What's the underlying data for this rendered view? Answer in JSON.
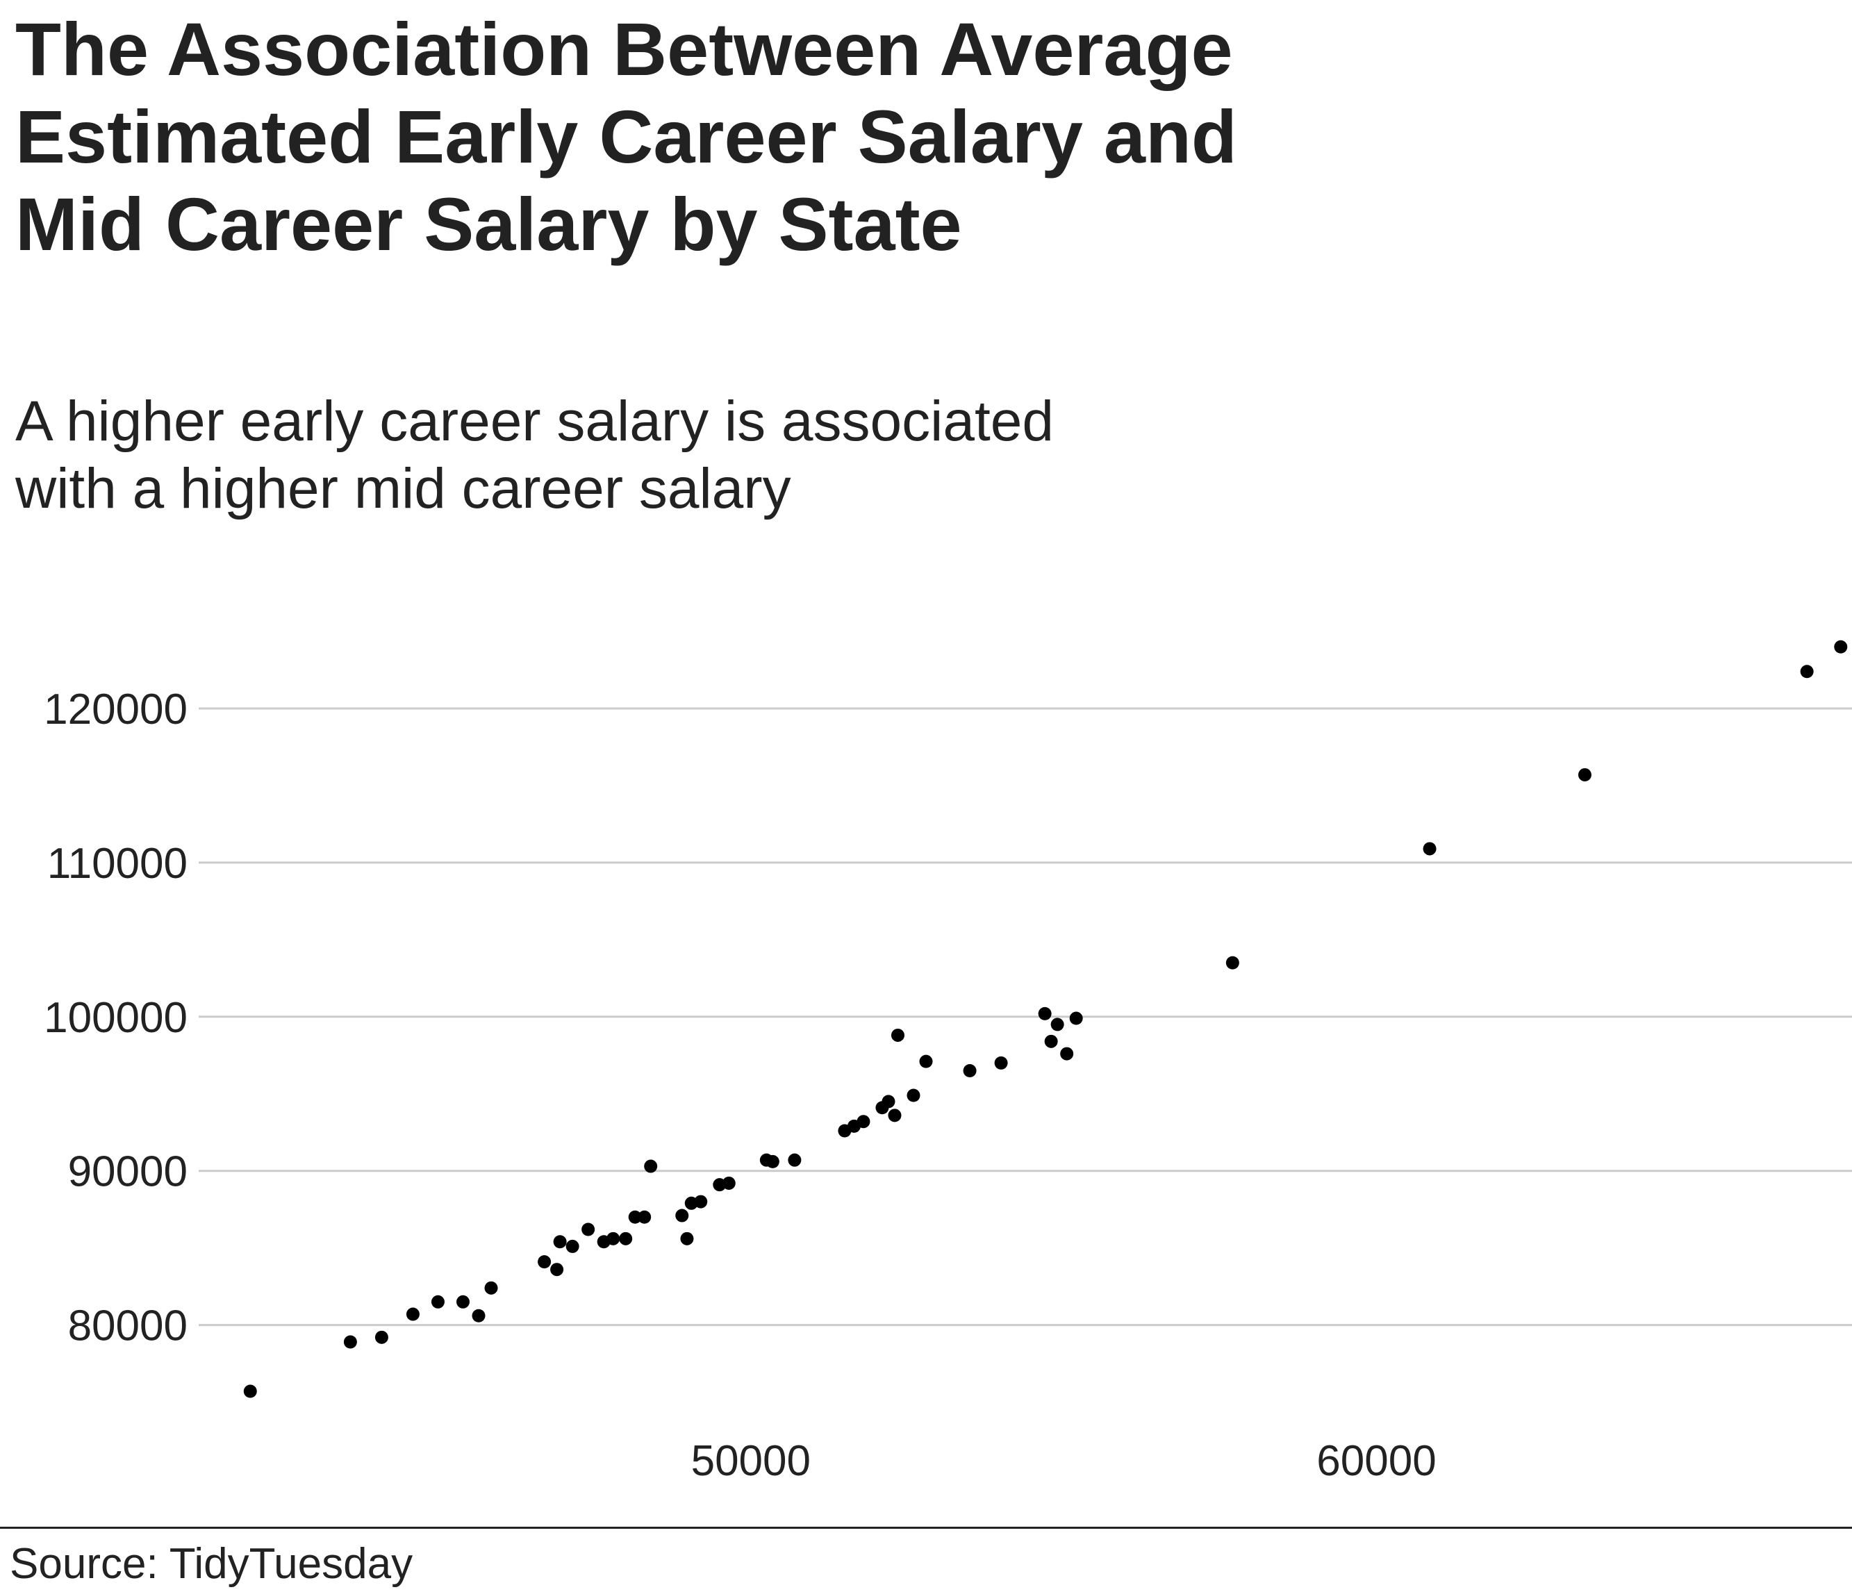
{
  "header": {
    "title": "The Association Between Average Estimated Early Career Salary and Mid Career Salary by State",
    "subtitle": "A higher early career salary is associated with a higher mid career salary"
  },
  "footer": {
    "source": "Source: TidyTuesday"
  },
  "chart_data": {
    "type": "scatter",
    "title": "The Association Between Average Estimated Early Career Salary and Mid Career Salary by State",
    "subtitle": "A higher early career salary is associated with a higher mid career salary",
    "xlabel": "",
    "ylabel": "",
    "xlim": [
      38000,
      67600
    ],
    "ylim": [
      72500,
      125500
    ],
    "x_ticks": [
      50000,
      60000
    ],
    "x_tick_labels": [
      "50000",
      "60000"
    ],
    "y_ticks": [
      80000,
      90000,
      100000,
      110000,
      120000
    ],
    "y_tick_labels": [
      "80000",
      "90000",
      "100000",
      "110000",
      "120000"
    ],
    "grid": "horizontal major only",
    "point_color": "#000000",
    "gridline_color": "#cbcbcb",
    "x": [
      42000,
      43600,
      44100,
      44600,
      45000,
      45400,
      45650,
      45850,
      46700,
      46900,
      46950,
      47150,
      47400,
      47650,
      47800,
      48000,
      48150,
      48300,
      48400,
      48900,
      48980,
      49050,
      49200,
      49500,
      49650,
      50250,
      50350,
      50700,
      51500,
      51650,
      51800,
      52100,
      52200,
      52300,
      52350,
      52600,
      52800,
      53500,
      54000,
      54700,
      54800,
      54900,
      55050,
      55200,
      57700,
      60850,
      63330,
      66880,
      67420
    ],
    "y": [
      75700,
      78900,
      79200,
      80700,
      81500,
      81500,
      80600,
      82400,
      84100,
      83600,
      85400,
      85100,
      86200,
      85400,
      85600,
      85600,
      87000,
      87000,
      90300,
      87100,
      85600,
      87900,
      88000,
      89100,
      89200,
      90700,
      90600,
      90700,
      92600,
      92900,
      93200,
      94100,
      94500,
      93600,
      98800,
      94900,
      97100,
      96500,
      97000,
      100200,
      98400,
      99500,
      97600,
      99900,
      103500,
      110900,
      115700,
      122400,
      124000
    ]
  }
}
